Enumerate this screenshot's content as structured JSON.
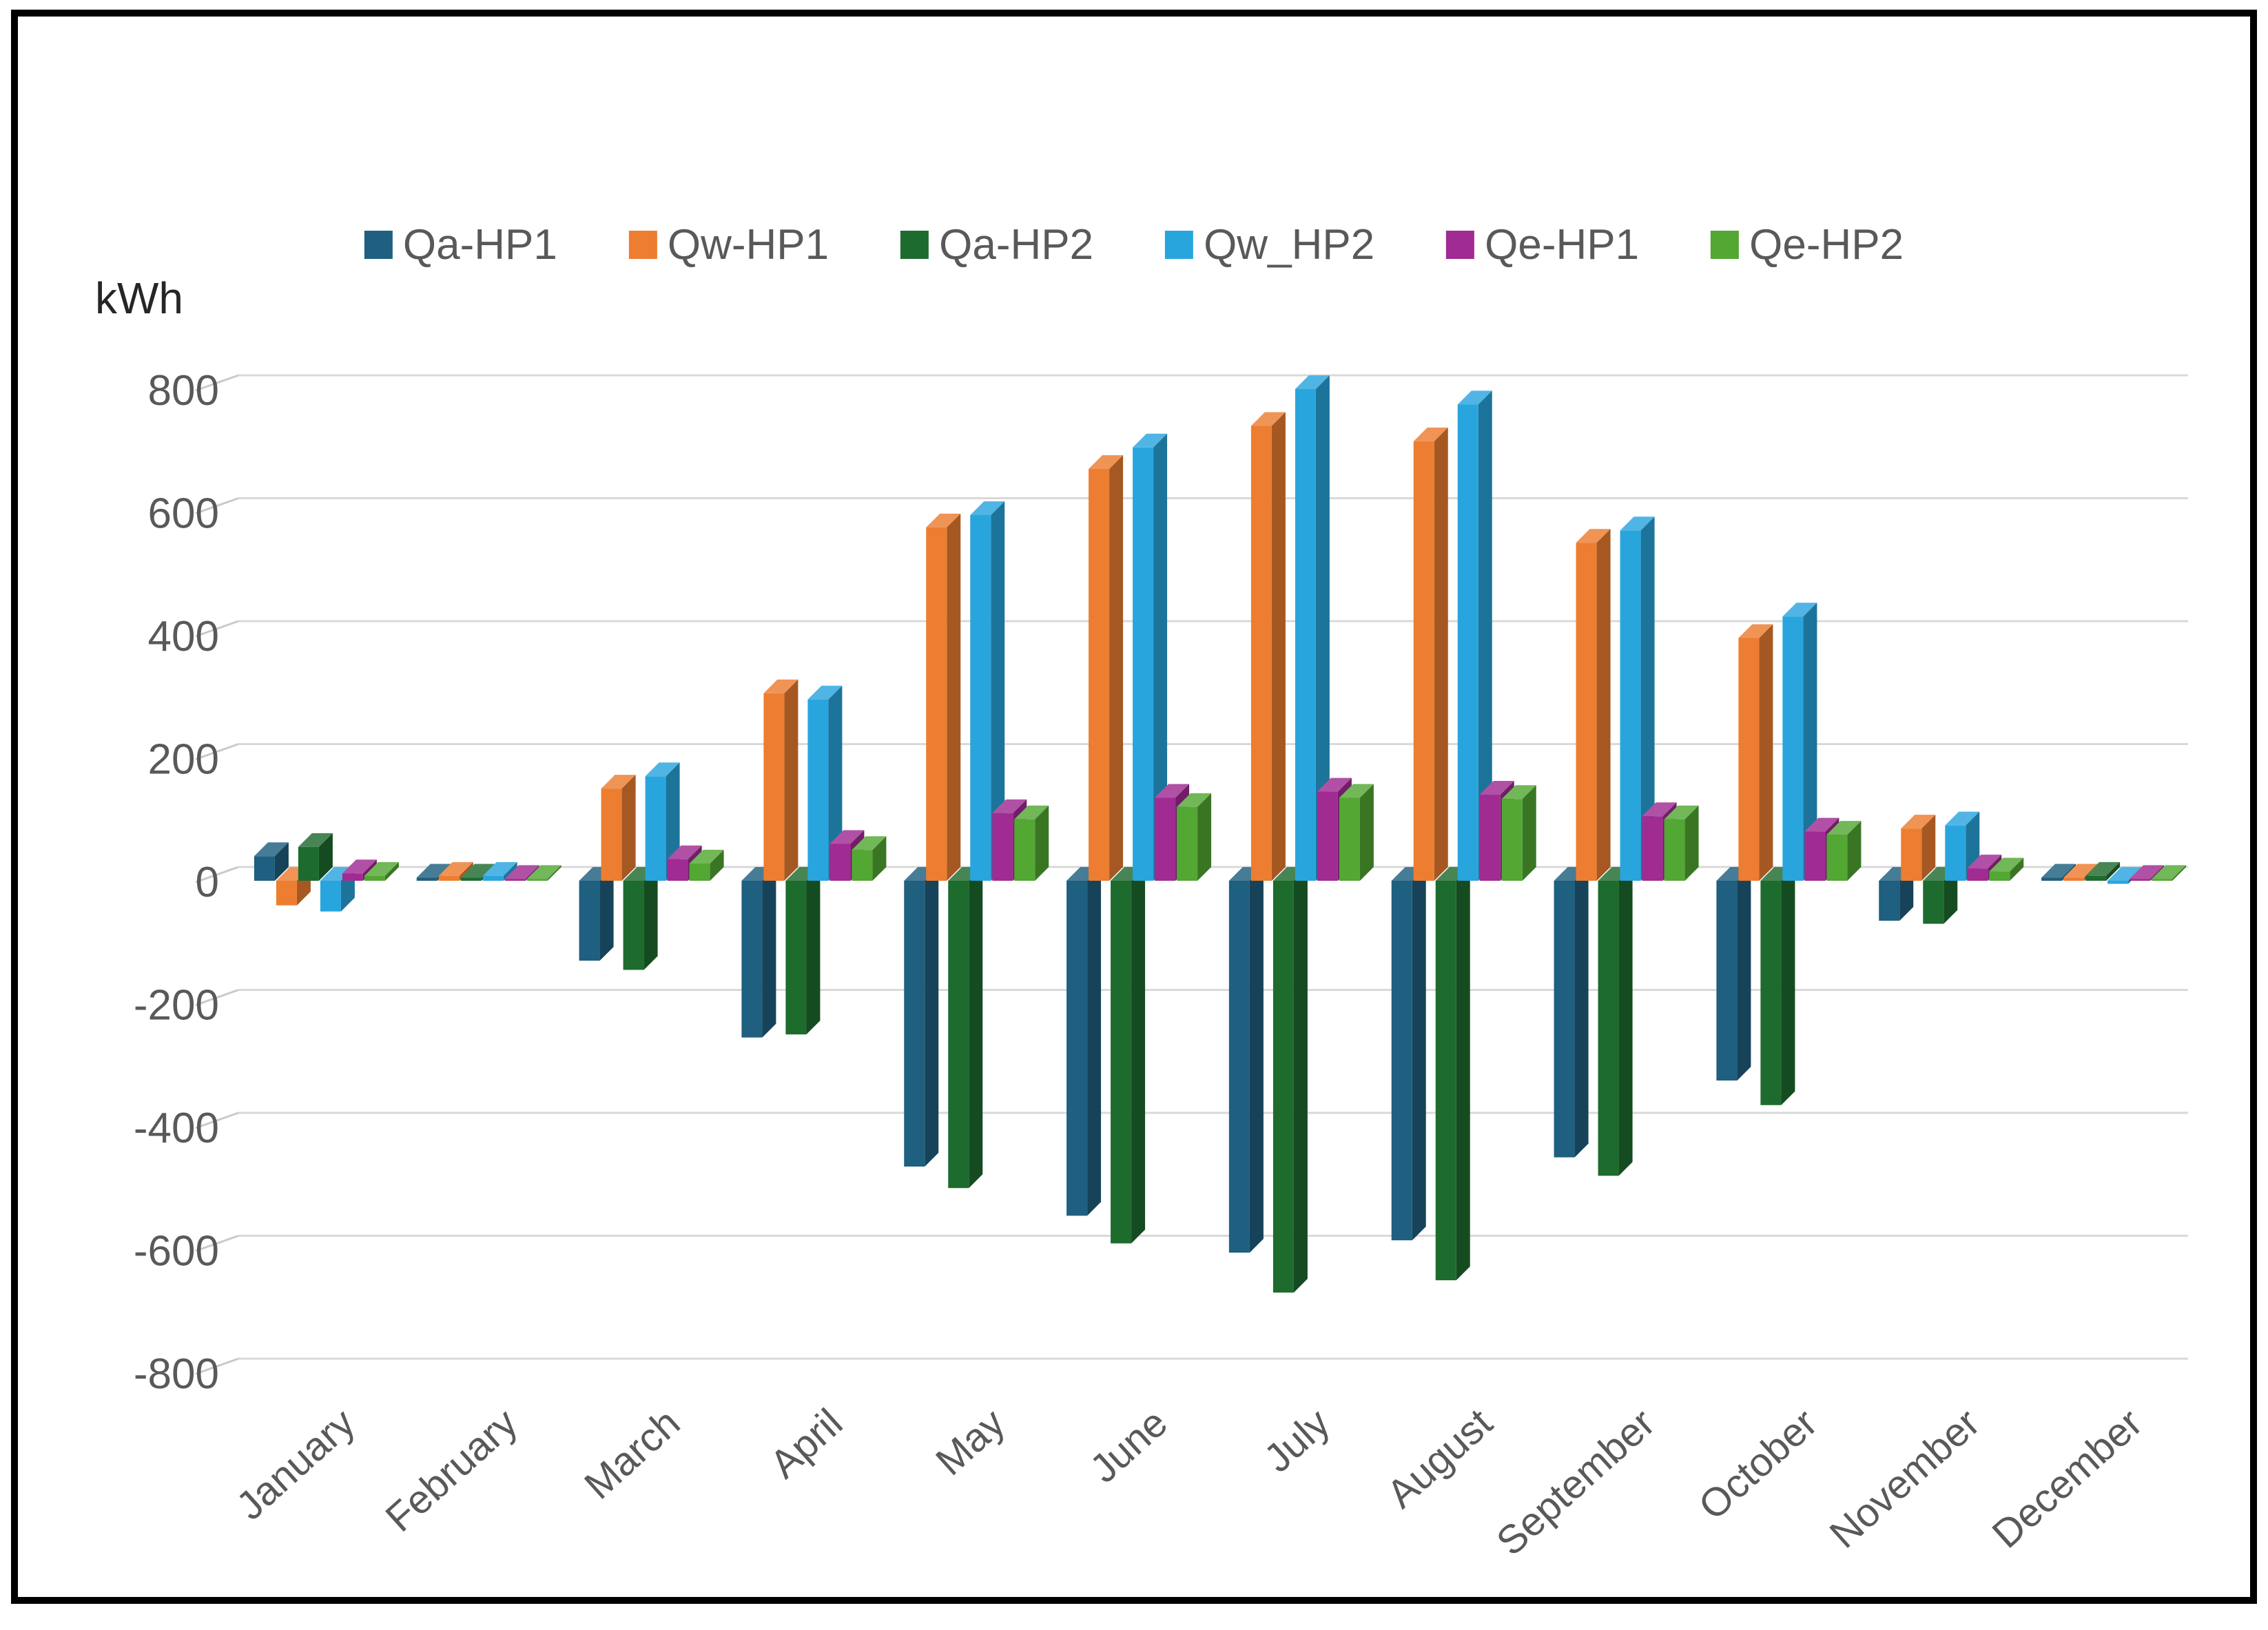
{
  "chart_data": {
    "type": "bar",
    "title": "",
    "ylabel": "kWh",
    "xlabel": "",
    "ylim": [
      -800,
      800
    ],
    "ytick_step": 200,
    "yticks": [
      800,
      600,
      400,
      200,
      0,
      -200,
      -400,
      -600,
      -800
    ],
    "grid": true,
    "legend_position": "top",
    "style_3d": true,
    "axis_text_color": "#595959",
    "gridline_color": "#D9D9D9",
    "frame_color": "#000000",
    "categories": [
      "January",
      "February",
      "March",
      "April",
      "May",
      "June",
      "July",
      "August",
      "September",
      "October",
      "November",
      "December"
    ],
    "series": [
      {
        "name": "Qa-HP1",
        "color": "#1F5F7F",
        "values": [
          40,
          5,
          -130,
          -255,
          -465,
          -545,
          -605,
          -585,
          -450,
          -325,
          -65,
          5
        ]
      },
      {
        "name": "Qw-HP1",
        "color": "#ED7D31",
        "values": [
          -40,
          8,
          150,
          305,
          575,
          670,
          740,
          715,
          550,
          395,
          85,
          5
        ]
      },
      {
        "name": "Qa-HP2",
        "color": "#1E6B2E",
        "values": [
          55,
          5,
          -145,
          -250,
          -500,
          -590,
          -670,
          -650,
          -480,
          -365,
          -70,
          8
        ]
      },
      {
        "name": "Qw_HP2",
        "color": "#29A5DE",
        "values": [
          -50,
          8,
          170,
          295,
          595,
          705,
          800,
          775,
          570,
          430,
          90,
          -5
        ]
      },
      {
        "name": "Qe-HP1",
        "color": "#A02B93",
        "values": [
          12,
          3,
          35,
          60,
          110,
          135,
          145,
          140,
          105,
          80,
          20,
          3
        ]
      },
      {
        "name": "Qe-HP2",
        "color": "#53A733",
        "values": [
          8,
          3,
          28,
          50,
          100,
          120,
          135,
          133,
          100,
          75,
          15,
          3
        ]
      }
    ]
  }
}
